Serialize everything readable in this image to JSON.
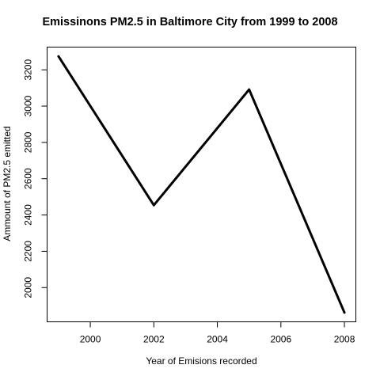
{
  "chart_data": {
    "type": "line",
    "title": "Emissinons PM2.5 in Baltimore City from 1999 to 2008",
    "xlabel": "Year of Emisions recorded",
    "ylabel": "Ammount of PM2.5 emitted",
    "x": [
      1999,
      2002,
      2005,
      2008
    ],
    "series": [
      {
        "values": [
          3274.2,
          2453.9,
          3091.4,
          1862.3
        ]
      }
    ],
    "xlim": [
      1998.64,
      2008.36
    ],
    "ylim": [
      1811.4,
      3325.1
    ],
    "xticks": [
      2000,
      2002,
      2004,
      2006,
      2008
    ],
    "yticks": [
      2000,
      2200,
      2400,
      2600,
      2800,
      3000,
      3200
    ],
    "line_color": "#000000",
    "grid": false,
    "legend": "none"
  }
}
